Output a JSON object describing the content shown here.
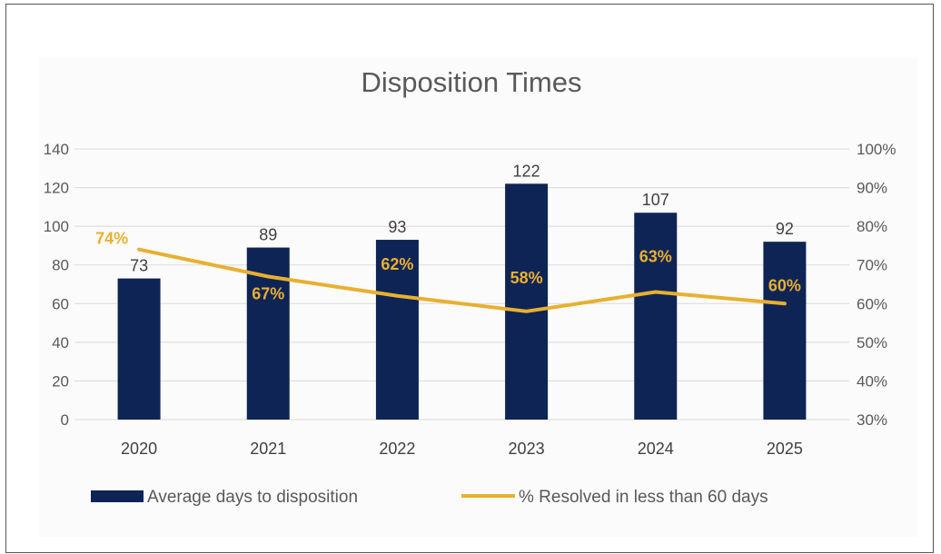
{
  "chart_data": {
    "type": "bar",
    "title": "Disposition Times",
    "categories": [
      "2020",
      "2021",
      "2022",
      "2023",
      "2024",
      "2025"
    ],
    "series": [
      {
        "name": "Average days to disposition",
        "type": "bar",
        "axis": "left",
        "values": [
          73,
          89,
          93,
          122,
          107,
          92
        ],
        "data_labels": [
          "73",
          "89",
          "93",
          "122",
          "107",
          "92"
        ]
      },
      {
        "name": "% Resolved in less than 60 days",
        "type": "line",
        "axis": "right",
        "values": [
          74,
          67,
          62,
          58,
          63,
          60
        ],
        "data_labels": [
          "74%",
          "67%",
          "62%",
          "58%",
          "63%",
          "60%"
        ]
      }
    ],
    "y_left": {
      "min": 0,
      "max": 140,
      "step": 20,
      "ticks": [
        "0",
        "20",
        "40",
        "60",
        "80",
        "100",
        "120",
        "140"
      ]
    },
    "y_right": {
      "min": 30,
      "max": 100,
      "step": 10,
      "ticks": [
        "30%",
        "40%",
        "50%",
        "60%",
        "70%",
        "80%",
        "90%",
        "100%"
      ]
    },
    "grid": true,
    "legend_position": "bottom",
    "colors": {
      "bar": "#0E2455",
      "line": "#E8B030",
      "grid": "#d9d9d9"
    }
  }
}
